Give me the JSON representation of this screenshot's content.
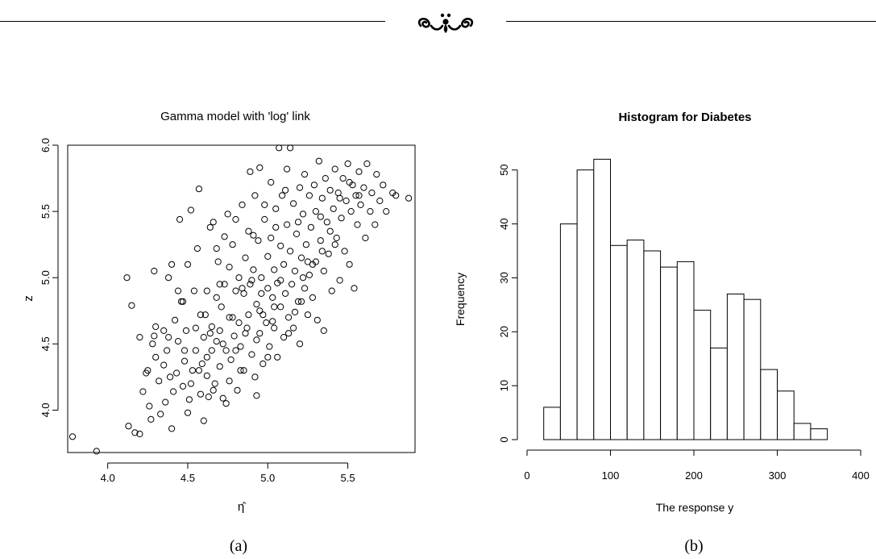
{
  "captions": {
    "a": "(a)",
    "b": "(b)"
  },
  "ornament": {
    "icon": "fleuron-ornament-icon"
  },
  "chart_data": [
    {
      "type": "scatter",
      "title": "Gamma model with 'log' link",
      "xlabel": "η̂",
      "ylabel": "z",
      "xlim": [
        3.75,
        5.92
      ],
      "ylim": [
        3.68,
        6.0
      ],
      "xticks": [
        4.0,
        4.5,
        5.0,
        5.5
      ],
      "xtick_labels": [
        "4.0",
        "4.5",
        "5.0",
        "5.5"
      ],
      "yticks": [
        4.0,
        4.5,
        5.0,
        5.5,
        6.0
      ],
      "ytick_labels": [
        "4.0",
        "4.5",
        "5.0",
        "5.5",
        "6.0"
      ],
      "marker": "open-circle",
      "grid": false,
      "points": [
        [
          3.78,
          3.8
        ],
        [
          3.93,
          3.69
        ],
        [
          4.12,
          5.0
        ],
        [
          4.15,
          4.79
        ],
        [
          4.13,
          3.88
        ],
        [
          4.17,
          3.83
        ],
        [
          4.2,
          3.82
        ],
        [
          4.22,
          4.14
        ],
        [
          4.24,
          4.28
        ],
        [
          4.26,
          4.03
        ],
        [
          4.27,
          3.93
        ],
        [
          4.28,
          4.5
        ],
        [
          4.29,
          4.56
        ],
        [
          4.3,
          4.63
        ],
        [
          4.29,
          5.05
        ],
        [
          4.32,
          4.22
        ],
        [
          4.33,
          3.97
        ],
        [
          4.35,
          4.34
        ],
        [
          4.36,
          4.06
        ],
        [
          4.37,
          4.45
        ],
        [
          4.38,
          4.55
        ],
        [
          4.39,
          4.25
        ],
        [
          4.4,
          5.1
        ],
        [
          4.4,
          3.86
        ],
        [
          4.41,
          4.14
        ],
        [
          4.42,
          4.68
        ],
        [
          4.43,
          4.28
        ],
        [
          4.44,
          4.52
        ],
        [
          4.45,
          5.44
        ],
        [
          4.46,
          4.82
        ],
        [
          4.47,
          4.18
        ],
        [
          4.48,
          4.37
        ],
        [
          4.49,
          4.6
        ],
        [
          4.5,
          5.1
        ],
        [
          4.5,
          3.98
        ],
        [
          4.51,
          4.08
        ],
        [
          4.52,
          5.51
        ],
        [
          4.53,
          4.3
        ],
        [
          4.54,
          4.9
        ],
        [
          4.55,
          4.45
        ],
        [
          4.56,
          5.22
        ],
        [
          4.57,
          5.67
        ],
        [
          4.58,
          4.12
        ],
        [
          4.59,
          4.35
        ],
        [
          4.6,
          4.55
        ],
        [
          4.6,
          3.92
        ],
        [
          4.61,
          4.72
        ],
        [
          4.62,
          4.26
        ],
        [
          4.62,
          4.9
        ],
        [
          4.63,
          4.1
        ],
        [
          4.64,
          5.38
        ],
        [
          4.65,
          4.45
        ],
        [
          4.65,
          4.63
        ],
        [
          4.66,
          5.42
        ],
        [
          4.67,
          4.2
        ],
        [
          4.68,
          4.85
        ],
        [
          4.68,
          4.52
        ],
        [
          4.69,
          5.12
        ],
        [
          4.7,
          4.33
        ],
        [
          4.7,
          4.6
        ],
        [
          4.71,
          4.78
        ],
        [
          4.72,
          4.09
        ],
        [
          4.73,
          5.31
        ],
        [
          4.73,
          4.95
        ],
        [
          4.74,
          4.45
        ],
        [
          4.75,
          5.48
        ],
        [
          4.76,
          4.22
        ],
        [
          4.76,
          4.7
        ],
        [
          4.77,
          4.38
        ],
        [
          4.78,
          5.25
        ],
        [
          4.79,
          4.56
        ],
        [
          4.8,
          4.9
        ],
        [
          4.8,
          5.44
        ],
        [
          4.81,
          4.15
        ],
        [
          4.82,
          4.66
        ],
        [
          4.82,
          5.0
        ],
        [
          4.83,
          4.48
        ],
        [
          4.84,
          5.55
        ],
        [
          4.85,
          4.3
        ],
        [
          4.85,
          4.88
        ],
        [
          4.86,
          5.15
        ],
        [
          4.87,
          4.62
        ],
        [
          4.88,
          4.72
        ],
        [
          4.88,
          5.35
        ],
        [
          4.89,
          5.8
        ],
        [
          4.9,
          4.98
        ],
        [
          4.9,
          4.42
        ],
        [
          4.91,
          5.06
        ],
        [
          4.92,
          4.25
        ],
        [
          4.92,
          5.62
        ],
        [
          4.93,
          4.8
        ],
        [
          4.93,
          4.11
        ],
        [
          4.94,
          5.28
        ],
        [
          4.95,
          4.58
        ],
        [
          4.95,
          5.83
        ],
        [
          4.96,
          5.0
        ],
        [
          4.97,
          4.72
        ],
        [
          4.97,
          4.35
        ],
        [
          4.98,
          5.44
        ],
        [
          4.99,
          4.66
        ],
        [
          5.0,
          5.16
        ],
        [
          5.0,
          4.92
        ],
        [
          5.01,
          4.48
        ],
        [
          5.02,
          5.72
        ],
        [
          5.02,
          5.3
        ],
        [
          5.03,
          4.85
        ],
        [
          5.04,
          5.06
        ],
        [
          5.04,
          4.62
        ],
        [
          5.05,
          5.52
        ],
        [
          5.06,
          4.96
        ],
        [
          5.06,
          4.4
        ],
        [
          5.07,
          5.98
        ],
        [
          5.08,
          5.24
        ],
        [
          5.08,
          4.78
        ],
        [
          5.09,
          5.62
        ],
        [
          5.1,
          4.55
        ],
        [
          5.1,
          5.1
        ],
        [
          5.11,
          4.88
        ],
        [
          5.12,
          5.4
        ],
        [
          5.12,
          5.82
        ],
        [
          5.13,
          4.7
        ],
        [
          5.14,
          5.98
        ],
        [
          5.14,
          5.2
        ],
        [
          5.15,
          4.95
        ],
        [
          5.16,
          4.62
        ],
        [
          5.16,
          5.56
        ],
        [
          5.17,
          5.05
        ],
        [
          5.18,
          5.33
        ],
        [
          5.19,
          4.82
        ],
        [
          5.2,
          5.68
        ],
        [
          5.2,
          4.5
        ],
        [
          5.21,
          5.15
        ],
        [
          5.22,
          5.48
        ],
        [
          5.23,
          4.92
        ],
        [
          5.23,
          5.78
        ],
        [
          5.24,
          5.25
        ],
        [
          5.25,
          4.72
        ],
        [
          5.26,
          5.62
        ],
        [
          5.26,
          5.02
        ],
        [
          5.27,
          5.38
        ],
        [
          5.28,
          4.85
        ],
        [
          5.29,
          5.7
        ],
        [
          5.3,
          5.12
        ],
        [
          5.3,
          5.5
        ],
        [
          5.31,
          4.68
        ],
        [
          5.32,
          5.88
        ],
        [
          5.33,
          5.28
        ],
        [
          5.34,
          5.6
        ],
        [
          5.35,
          4.6
        ],
        [
          5.35,
          5.05
        ],
        [
          5.36,
          5.75
        ],
        [
          5.37,
          5.42
        ],
        [
          5.38,
          5.18
        ],
        [
          5.39,
          5.66
        ],
        [
          5.4,
          4.9
        ],
        [
          5.41,
          5.52
        ],
        [
          5.42,
          5.82
        ],
        [
          5.43,
          5.3
        ],
        [
          5.44,
          5.64
        ],
        [
          5.45,
          4.98
        ],
        [
          5.46,
          5.45
        ],
        [
          5.47,
          5.75
        ],
        [
          5.48,
          5.2
        ],
        [
          5.49,
          5.58
        ],
        [
          5.5,
          5.86
        ],
        [
          5.51,
          5.1
        ],
        [
          5.52,
          5.5
        ],
        [
          5.53,
          5.7
        ],
        [
          5.54,
          4.92
        ],
        [
          5.55,
          5.62
        ],
        [
          5.56,
          5.4
        ],
        [
          5.57,
          5.8
        ],
        [
          5.58,
          5.55
        ],
        [
          5.6,
          5.68
        ],
        [
          5.61,
          5.3
        ],
        [
          5.62,
          5.86
        ],
        [
          5.64,
          5.5
        ],
        [
          5.65,
          5.64
        ],
        [
          5.67,
          5.4
        ],
        [
          5.68,
          5.78
        ],
        [
          5.7,
          5.58
        ],
        [
          5.72,
          5.7
        ],
        [
          5.74,
          5.5
        ],
        [
          5.78,
          5.64
        ],
        [
          5.8,
          5.62
        ],
        [
          5.88,
          5.6
        ],
        [
          4.47,
          4.82
        ],
        [
          4.38,
          5.0
        ],
        [
          4.25,
          4.3
        ],
        [
          4.3,
          4.4
        ],
        [
          4.55,
          4.62
        ],
        [
          4.62,
          4.4
        ],
        [
          4.7,
          4.95
        ],
        [
          4.78,
          4.7
        ],
        [
          4.86,
          4.58
        ],
        [
          4.95,
          4.75
        ],
        [
          5.03,
          4.67
        ],
        [
          5.08,
          4.98
        ],
        [
          5.17,
          4.74
        ],
        [
          5.22,
          5.0
        ],
        [
          5.28,
          5.1
        ],
        [
          5.34,
          5.2
        ],
        [
          5.42,
          5.25
        ],
        [
          4.52,
          4.2
        ],
        [
          4.66,
          4.15
        ],
        [
          4.74,
          4.05
        ],
        [
          4.83,
          4.3
        ],
        [
          4.93,
          4.53
        ],
        [
          5.0,
          4.4
        ],
        [
          4.44,
          4.9
        ],
        [
          4.58,
          4.72
        ],
        [
          4.68,
          5.22
        ],
        [
          4.76,
          5.08
        ],
        [
          4.84,
          4.92
        ],
        [
          4.91,
          5.32
        ],
        [
          4.98,
          5.55
        ],
        [
          5.05,
          5.38
        ],
        [
          5.11,
          5.66
        ],
        [
          5.19,
          5.42
        ],
        [
          5.25,
          5.12
        ],
        [
          5.33,
          5.46
        ],
        [
          5.39,
          5.35
        ],
        [
          5.45,
          5.6
        ],
        [
          5.51,
          5.72
        ],
        [
          5.57,
          5.62
        ],
        [
          4.2,
          4.55
        ],
        [
          4.35,
          4.6
        ],
        [
          4.48,
          4.45
        ],
        [
          4.57,
          4.3
        ],
        [
          4.64,
          4.58
        ],
        [
          4.72,
          4.5
        ],
        [
          4.8,
          4.45
        ],
        [
          4.89,
          4.95
        ],
        [
          4.96,
          4.88
        ],
        [
          5.04,
          4.78
        ],
        [
          5.13,
          4.58
        ],
        [
          5.21,
          4.82
        ]
      ]
    },
    {
      "type": "bar",
      "subtype": "histogram",
      "title": "Histogram for Diabetes",
      "xlabel": "The response y",
      "ylabel": "Frequency",
      "xlim": [
        0,
        400
      ],
      "ylim": [
        0,
        54
      ],
      "xticks": [
        0,
        100,
        200,
        300,
        400
      ],
      "xtick_labels": [
        "0",
        "100",
        "200",
        "300",
        "400"
      ],
      "yticks": [
        0,
        10,
        20,
        30,
        40,
        50
      ],
      "ytick_labels": [
        "0",
        "10",
        "20",
        "30",
        "40",
        "50"
      ],
      "bin_width": 20,
      "bins": [
        {
          "start": 20,
          "end": 40,
          "count": 6
        },
        {
          "start": 40,
          "end": 60,
          "count": 40
        },
        {
          "start": 60,
          "end": 80,
          "count": 50
        },
        {
          "start": 80,
          "end": 100,
          "count": 52
        },
        {
          "start": 100,
          "end": 120,
          "count": 36
        },
        {
          "start": 120,
          "end": 140,
          "count": 37
        },
        {
          "start": 140,
          "end": 160,
          "count": 35
        },
        {
          "start": 160,
          "end": 180,
          "count": 32
        },
        {
          "start": 180,
          "end": 200,
          "count": 33
        },
        {
          "start": 200,
          "end": 220,
          "count": 24
        },
        {
          "start": 220,
          "end": 240,
          "count": 17
        },
        {
          "start": 240,
          "end": 260,
          "count": 27
        },
        {
          "start": 260,
          "end": 280,
          "count": 26
        },
        {
          "start": 280,
          "end": 300,
          "count": 13
        },
        {
          "start": 300,
          "end": 320,
          "count": 9
        },
        {
          "start": 320,
          "end": 340,
          "count": 3
        },
        {
          "start": 340,
          "end": 360,
          "count": 2
        }
      ],
      "grid": false
    }
  ]
}
